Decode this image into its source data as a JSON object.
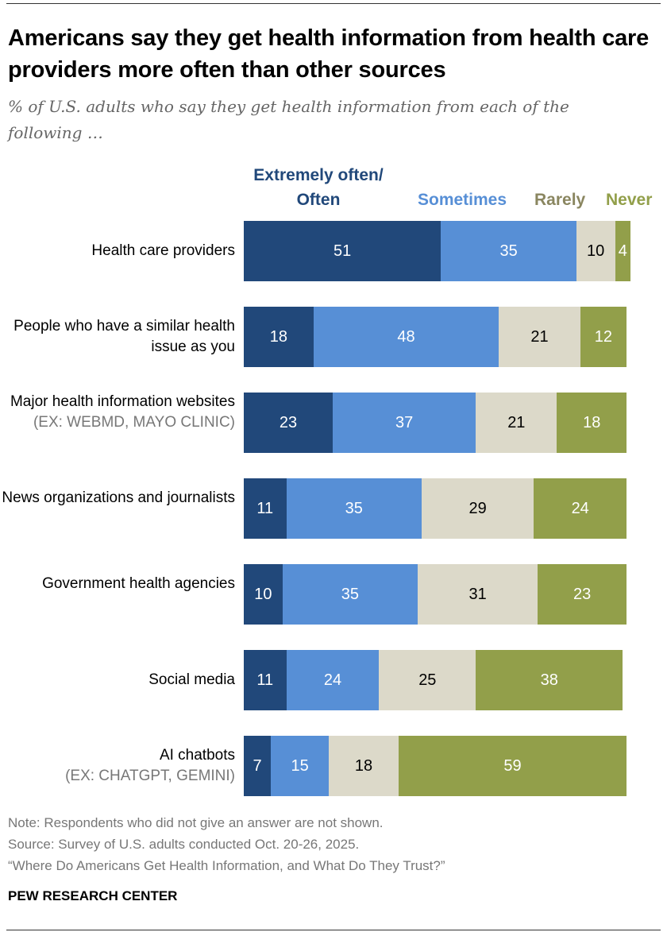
{
  "chart_data": {
    "type": "bar",
    "orientation": "horizontal",
    "stacked": true,
    "title": "Americans say they get health information from health care providers more often than other sources",
    "subtitle": "% of U.S. adults who say they get health information from each of the following …",
    "categories": [
      {
        "label": "Health care providers",
        "sublabel": ""
      },
      {
        "label": "People who have a similar health issue as you",
        "sublabel": ""
      },
      {
        "label": "Major health information websites",
        "sublabel": "(EX: WEBMD, MAYO CLINIC)"
      },
      {
        "label": "News organizations and journalists",
        "sublabel": ""
      },
      {
        "label": "Government health agencies",
        "sublabel": ""
      },
      {
        "label": "Social media",
        "sublabel": ""
      },
      {
        "label": "AI chatbots",
        "sublabel": "(EX: CHATGPT, GEMINI)"
      }
    ],
    "series": [
      {
        "name": "Extremely often/ Often",
        "color": "#21487a",
        "label_color": "#ffffff",
        "values": [
          51,
          18,
          23,
          11,
          10,
          11,
          7
        ]
      },
      {
        "name": "Sometimes",
        "color": "#578fd6",
        "label_color": "#ffffff",
        "values": [
          35,
          48,
          37,
          35,
          35,
          24,
          15
        ]
      },
      {
        "name": "Rarely",
        "color": "#dcd9c9",
        "legend_color": "#8a8660",
        "label_color": "#000000",
        "values": [
          10,
          21,
          21,
          29,
          31,
          25,
          18
        ]
      },
      {
        "name": "Never",
        "color": "#929f4a",
        "label_color": "#ffffff",
        "values": [
          4,
          12,
          18,
          24,
          23,
          38,
          59
        ]
      }
    ],
    "xlim": [
      0,
      100
    ],
    "grid": false,
    "legend": "top"
  },
  "footer": {
    "note": "Note: Respondents who did not give an answer are not shown.",
    "source": "Source: Survey of U.S. adults conducted Oct. 20-26, 2025.",
    "report": "“Where Do Americans Get Health Information, and What Do They Trust?”",
    "brand": "PEW RESEARCH CENTER"
  }
}
